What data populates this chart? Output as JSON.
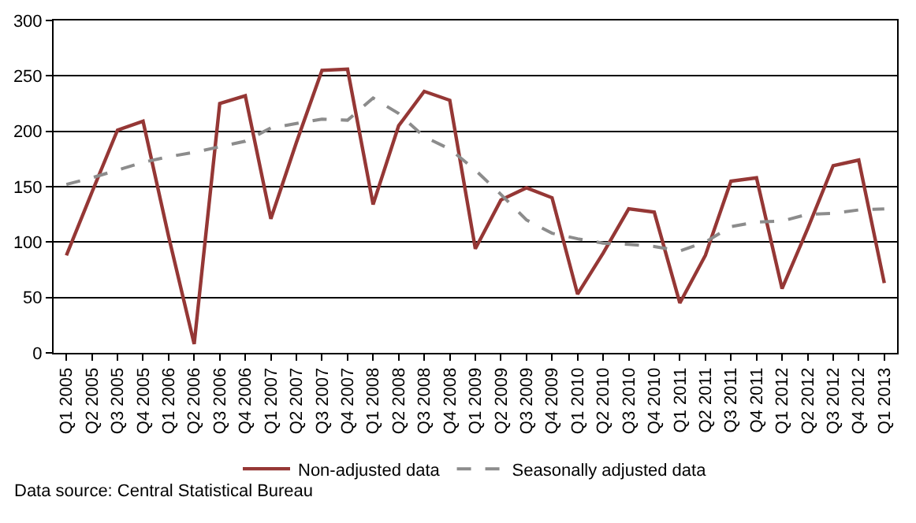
{
  "chart_data": {
    "type": "line",
    "categories": [
      "Q1 2005",
      "Q2 2005",
      "Q3 2005",
      "Q4 2005",
      "Q1 2006",
      "Q2 2006",
      "Q3 2006",
      "Q4 2006",
      "Q1 2007",
      "Q2 2007",
      "Q3 2007",
      "Q4 2007",
      "Q1 2008",
      "Q2 2008",
      "Q3 2008",
      "Q4 2008",
      "Q1 2009",
      "Q2 2009",
      "Q3 2009",
      "Q4 2009",
      "Q1 2010",
      "Q2 2010",
      "Q3 2010",
      "Q4 2010",
      "Q1 2011",
      "Q2 2011",
      "Q3 2011",
      "Q4 2011",
      "Q1 2012",
      "Q2 2012",
      "Q3 2012",
      "Q4 2012",
      "Q1 2013"
    ],
    "series": [
      {
        "name": "Non-adjusted data",
        "color": "#953735",
        "line_style": "solid",
        "values": [
          88,
          145,
          201,
          209,
          105,
          8,
          225,
          232,
          121,
          190,
          255,
          256,
          134,
          205,
          236,
          228,
          94,
          138,
          149,
          140,
          53,
          90,
          130,
          127,
          45,
          88,
          155,
          158,
          58,
          112,
          169,
          174,
          63
        ]
      },
      {
        "name": "Seasonally adjusted data",
        "color": "#8c8c8c",
        "line_style": "dashed",
        "values": [
          152,
          158,
          165,
          172,
          177,
          181,
          186,
          191,
          203,
          207,
          211,
          210,
          230,
          216,
          195,
          184,
          165,
          143,
          120,
          108,
          103,
          99,
          98,
          96,
          92,
          100,
          114,
          118,
          119,
          125,
          126,
          129,
          130
        ]
      }
    ],
    "ylim": [
      0,
      300
    ],
    "yticks": [
      0,
      50,
      100,
      150,
      200,
      250,
      300
    ],
    "grid": "y",
    "legend": "bottom",
    "marker": "none",
    "annotations": [
      "Data source: Central Statistical Bureau"
    ]
  }
}
